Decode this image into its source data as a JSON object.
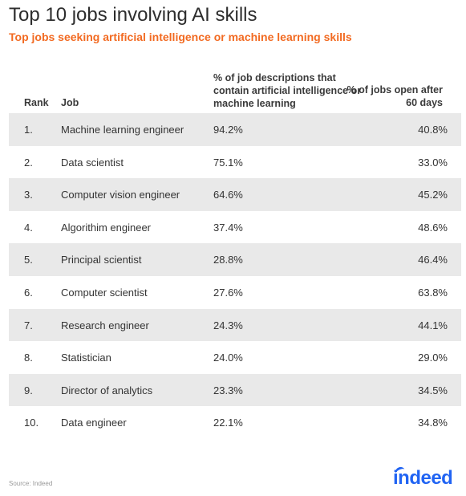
{
  "title": "Top 10 jobs involving AI skills",
  "subtitle": "Top jobs seeking artificial intelligence or machine learning skills",
  "source": "Source: Indeed",
  "logo_text": "indeed",
  "colors": {
    "accent": "#f26a21",
    "logo": "#2164f3",
    "row_shade": "#e9e9e9"
  },
  "chart_data": {
    "type": "table",
    "title": "Top 10 jobs involving AI skills",
    "subtitle": "Top jobs seeking artificial intelligence or machine learning skills",
    "columns": [
      "Rank",
      "Job",
      "% of job descriptions that contain artificial intelligence or machine learning",
      "% of jobs open after 60 days"
    ],
    "rows": [
      {
        "rank": "1.",
        "job": "Machine learning engineer",
        "pct_ai": "94.2%",
        "pct_open": "40.8%"
      },
      {
        "rank": "2.",
        "job": "Data scientist",
        "pct_ai": "75.1%",
        "pct_open": "33.0%"
      },
      {
        "rank": "3.",
        "job": "Computer vision engineer",
        "pct_ai": "64.6%",
        "pct_open": "45.2%"
      },
      {
        "rank": "4.",
        "job": "Algorithim engineer",
        "pct_ai": "37.4%",
        "pct_open": "48.6%"
      },
      {
        "rank": "5.",
        "job": "Principal scientist",
        "pct_ai": "28.8%",
        "pct_open": "46.4%"
      },
      {
        "rank": "6.",
        "job": "Computer scientist",
        "pct_ai": "27.6%",
        "pct_open": "63.8%"
      },
      {
        "rank": "7.",
        "job": "Research engineer",
        "pct_ai": "24.3%",
        "pct_open": "44.1%"
      },
      {
        "rank": "8.",
        "job": "Statistician",
        "pct_ai": "24.0%",
        "pct_open": "29.0%"
      },
      {
        "rank": "9.",
        "job": "Director of analytics",
        "pct_ai": "23.3%",
        "pct_open": "34.5%"
      },
      {
        "rank": "10.",
        "job": "Data engineer",
        "pct_ai": "22.1%",
        "pct_open": "34.8%"
      }
    ]
  }
}
